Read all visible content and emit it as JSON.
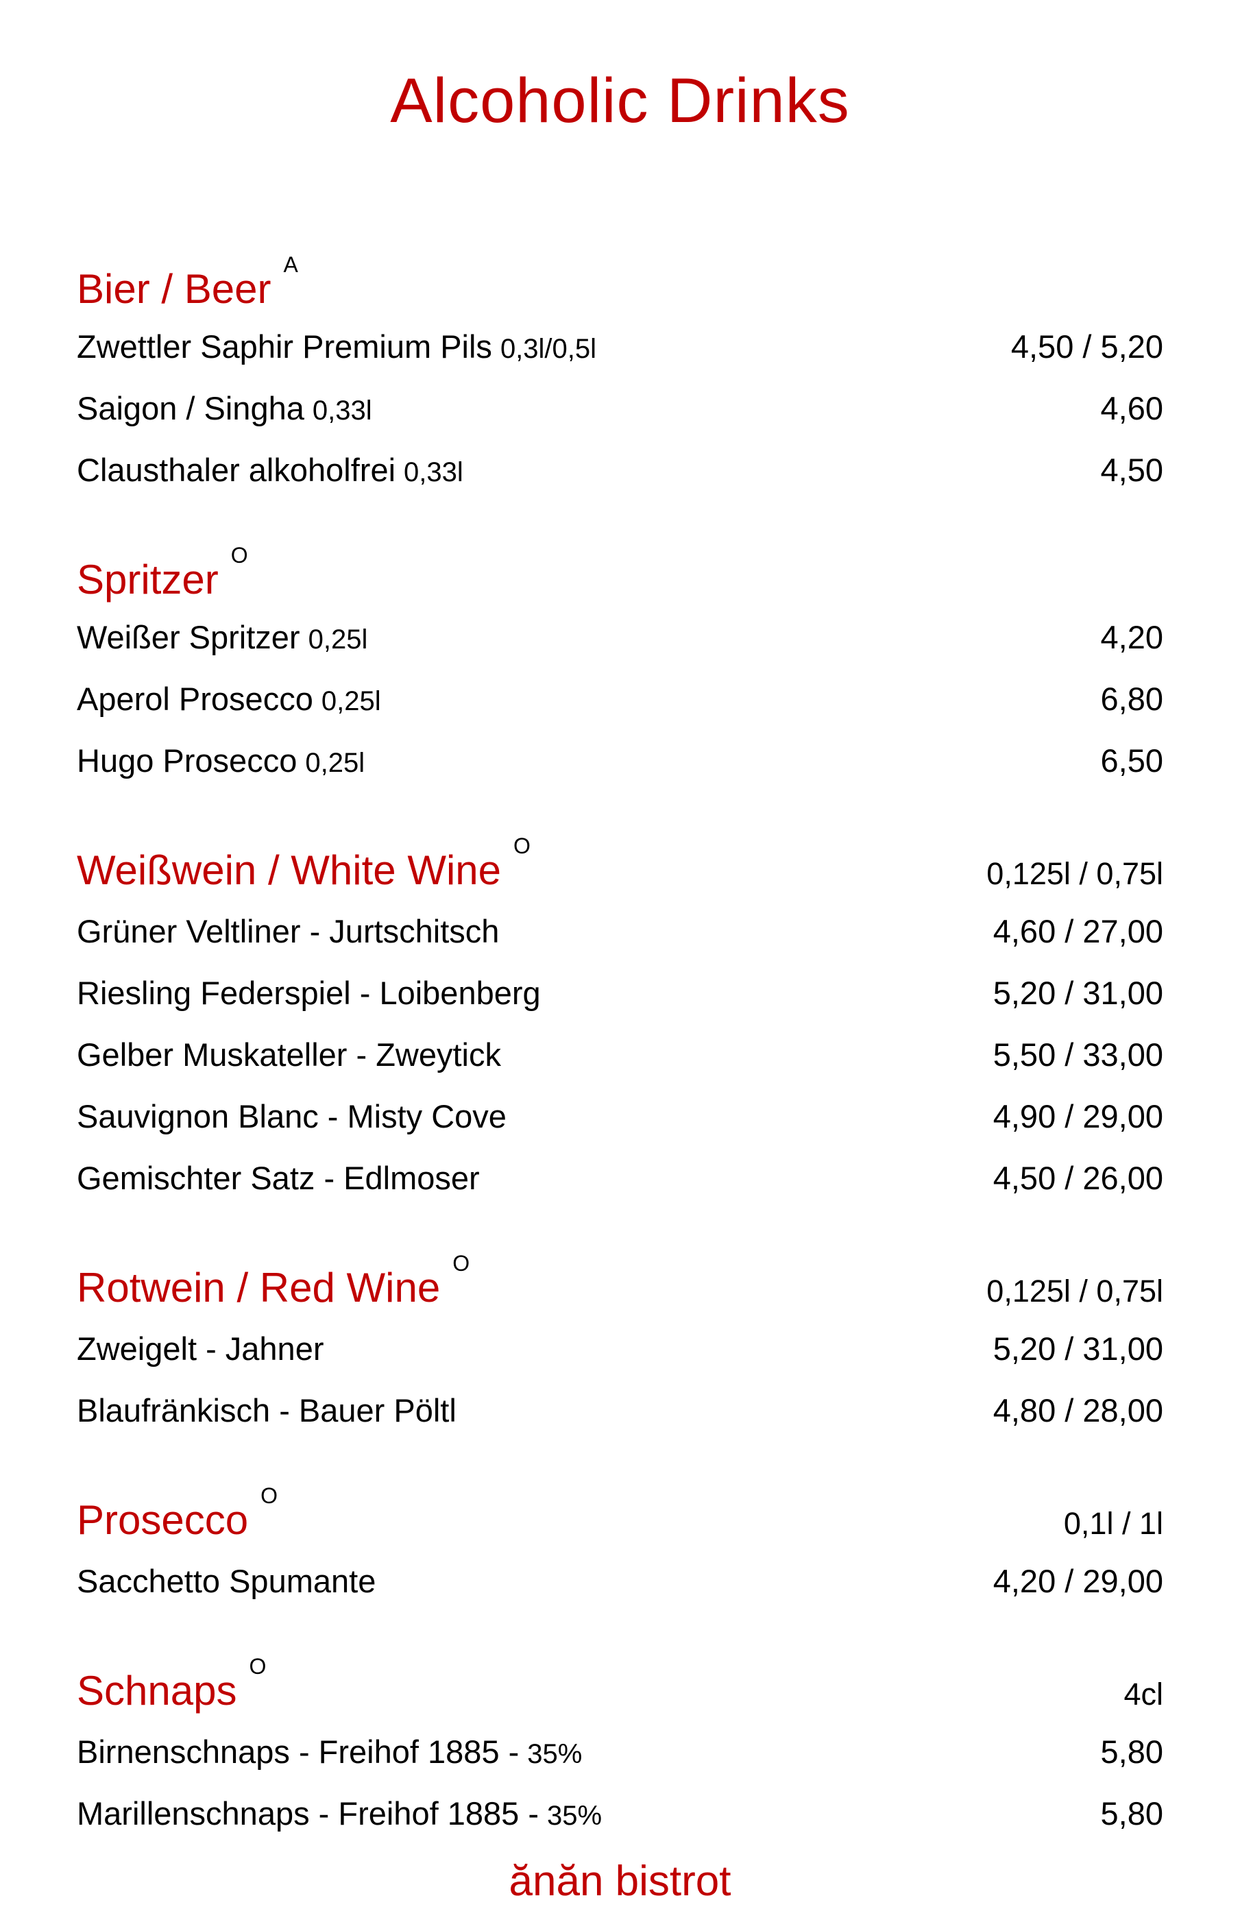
{
  "page": {
    "title": "Alcoholic Drinks",
    "footer": "ănăn bistrot",
    "accent_color": "#C00000",
    "text_color": "#000000",
    "background_color": "#ffffff"
  },
  "sections": [
    {
      "name": "Bier / Beer",
      "superscript": "A",
      "price_header": "",
      "items": [
        {
          "name": "Zwettler Saphir Premium Pils",
          "size": "0,3l/0,5l",
          "price": "4,50 / 5,20"
        },
        {
          "name": "Saigon / Singha",
          "size": "0,33l",
          "price": "4,60"
        },
        {
          "name": "Clausthaler alkoholfrei",
          "size": "0,33l",
          "price": "4,50"
        }
      ]
    },
    {
      "name": "Spritzer",
      "superscript": "O",
      "price_header": "",
      "items": [
        {
          "name": "Weißer Spritzer",
          "size": "0,25l",
          "price": "4,20"
        },
        {
          "name": "Aperol Prosecco",
          "size": "0,25l",
          "price": "6,80"
        },
        {
          "name": "Hugo Prosecco",
          "size": "0,25l",
          "price": "6,50"
        }
      ]
    },
    {
      "name": "Weißwein / White Wine",
      "superscript": "O",
      "price_header": "0,125l / 0,75l",
      "items": [
        {
          "name": "Grüner Veltliner - Jurtschitsch",
          "size": "",
          "price": "4,60 / 27,00"
        },
        {
          "name": "Riesling Federspiel - Loibenberg",
          "size": "",
          "price": "5,20 / 31,00"
        },
        {
          "name": "Gelber Muskateller - Zweytick",
          "size": "",
          "price": "5,50 / 33,00"
        },
        {
          "name": "Sauvignon Blanc - Misty Cove",
          "size": "",
          "price": "4,90 / 29,00"
        },
        {
          "name": "Gemischter Satz - Edlmoser",
          "size": "",
          "price": "4,50 / 26,00"
        }
      ]
    },
    {
      "name": "Rotwein / Red Wine",
      "superscript": "O",
      "price_header": "0,125l / 0,75l",
      "items": [
        {
          "name": "Zweigelt - Jahner",
          "size": "",
          "price": "5,20 / 31,00"
        },
        {
          "name": "Blaufränkisch - Bauer Pöltl",
          "size": "",
          "price": "4,80 / 28,00"
        }
      ]
    },
    {
      "name": "Prosecco",
      "superscript": "O",
      "price_header": "0,1l / 1l",
      "items": [
        {
          "name": "Sacchetto Spumante",
          "size": "",
          "price": "4,20 / 29,00"
        }
      ]
    },
    {
      "name": "Schnaps",
      "superscript": "O",
      "price_header": "4cl",
      "items": [
        {
          "name": "Birnenschnaps - Freihof 1885 -",
          "size": "35%",
          "price": "5,80"
        },
        {
          "name": "Marillenschnaps - Freihof 1885 -",
          "size": "35%",
          "price": "5,80"
        }
      ]
    }
  ]
}
